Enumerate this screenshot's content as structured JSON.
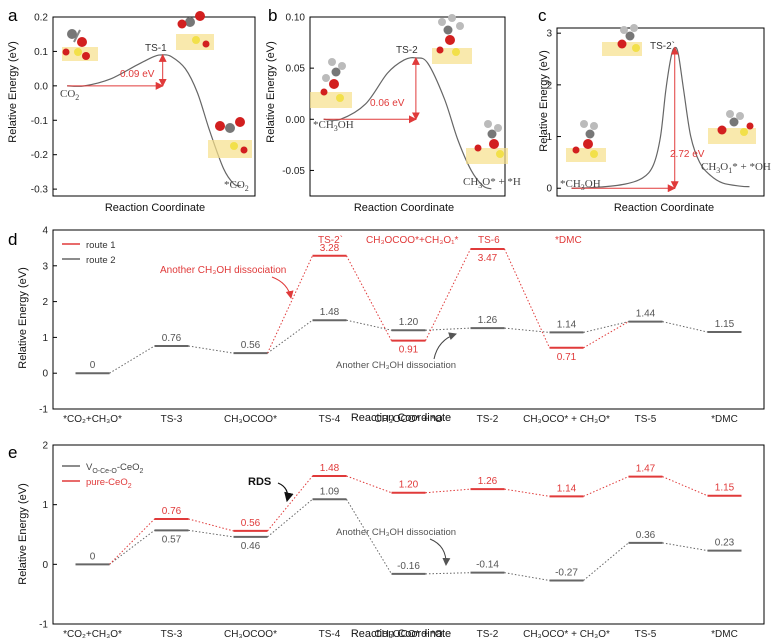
{
  "colors": {
    "red": "#e03a3a",
    "gray": "#666666",
    "axis": "#000000",
    "mol_red": "#d21f1f",
    "mol_gray": "#888888",
    "mol_yellow": "#f2e04a",
    "mol_surface": "#f6e08a"
  },
  "chart_data": [
    {
      "id": "a",
      "type": "line",
      "panel_label": "a",
      "xlabel": "Reaction Coordinate",
      "ylabel": "Relative Energy (eV)",
      "ylim": [
        -0.32,
        0.2
      ],
      "yticks": [
        0.2,
        0.1,
        0.0,
        -0.1,
        -0.2,
        -0.3
      ],
      "ytick_labels": [
        "0.2",
        "0.1",
        "0.0",
        "-0.1",
        "-0.2",
        "-0.3"
      ],
      "xlim": [
        0,
        1
      ],
      "curve": [
        [
          0.0,
          0.0
        ],
        [
          0.1,
          0.0
        ],
        [
          0.25,
          0.02
        ],
        [
          0.4,
          0.06
        ],
        [
          0.5,
          0.085
        ],
        [
          0.55,
          0.09
        ],
        [
          0.6,
          0.085
        ],
        [
          0.68,
          0.05
        ],
        [
          0.75,
          -0.02
        ],
        [
          0.82,
          -0.13
        ],
        [
          0.9,
          -0.24
        ],
        [
          0.96,
          -0.285
        ],
        [
          1.0,
          -0.29
        ]
      ],
      "labels": {
        "start": "CO",
        "start_sub": "2",
        "ts": "TS-1",
        "barrier": "0.09 eV",
        "end": "*CO",
        "end_sub": "2"
      },
      "barrier": {
        "x_from": 0.0,
        "x_to": 0.55,
        "y_low": 0.0,
        "y_high": 0.09
      }
    },
    {
      "id": "b",
      "type": "line",
      "panel_label": "b",
      "xlabel": "Reaction Coordinate",
      "ylabel": "Relative Energy (eV)",
      "ylim": [
        -0.075,
        0.1
      ],
      "yticks": [
        0.1,
        0.05,
        0.0,
        -0.05
      ],
      "ytick_labels": [
        "0.10",
        "0.05",
        "0.00",
        "-0.05"
      ],
      "xlim": [
        0,
        1
      ],
      "curve": [
        [
          0.0,
          0.0
        ],
        [
          0.1,
          0.0
        ],
        [
          0.25,
          0.015
        ],
        [
          0.38,
          0.045
        ],
        [
          0.48,
          0.058
        ],
        [
          0.55,
          0.06
        ],
        [
          0.62,
          0.055
        ],
        [
          0.72,
          0.02
        ],
        [
          0.8,
          -0.02
        ],
        [
          0.88,
          -0.05
        ],
        [
          0.95,
          -0.065
        ],
        [
          1.0,
          -0.068
        ]
      ],
      "labels": {
        "start": "*CH",
        "start_sub": "3",
        "start_tail": "OH",
        "ts": "TS-2",
        "barrier": "0.06 eV",
        "end": "CH",
        "end_sub": "3",
        "end_tail": "O* + *H"
      },
      "barrier": {
        "x_from": 0.0,
        "x_to": 0.55,
        "y_low": 0.0,
        "y_high": 0.06
      }
    },
    {
      "id": "c",
      "type": "line",
      "panel_label": "c",
      "xlabel": "Reaction Coordinate",
      "ylabel": "Relative Energy (eV)",
      "ylim": [
        -0.15,
        3.1
      ],
      "yticks": [
        0,
        1,
        2,
        3
      ],
      "ytick_labels": [
        "0",
        "1",
        "2",
        "3"
      ],
      "xlim": [
        0,
        1
      ],
      "curve": [
        [
          0.0,
          0.0
        ],
        [
          0.15,
          0.02
        ],
        [
          0.3,
          0.08
        ],
        [
          0.4,
          0.2
        ],
        [
          0.46,
          0.45
        ],
        [
          0.5,
          1.0
        ],
        [
          0.53,
          1.9
        ],
        [
          0.56,
          2.55
        ],
        [
          0.58,
          2.72
        ],
        [
          0.6,
          2.6
        ],
        [
          0.63,
          1.9
        ],
        [
          0.67,
          1.0
        ],
        [
          0.72,
          0.5
        ],
        [
          0.78,
          0.25
        ],
        [
          0.85,
          0.1
        ],
        [
          0.95,
          0.04
        ],
        [
          1.0,
          0.03
        ]
      ],
      "labels": {
        "start": "*CH",
        "start_sub": "3",
        "start_tail": "OH",
        "ts": "TS-2`",
        "barrier": "2.72 eV",
        "end": "CH",
        "end_sub": "3",
        "end_mid": "O",
        "end_tail": "* + *OH"
      },
      "barrier": {
        "x_from": 0.0,
        "x_to": 0.58,
        "y_low": 0.0,
        "y_high": 2.72
      }
    },
    {
      "id": "d",
      "type": "line",
      "panel_label": "d",
      "xlabel": "Reaction Coordinate",
      "ylabel": "Relative Energy (eV)",
      "ylim": [
        -1,
        4
      ],
      "yticks": [
        4,
        3,
        2,
        1,
        0,
        -1
      ],
      "ytick_labels": [
        "4",
        "3",
        "2",
        "1",
        "0",
        "-1"
      ],
      "categories": [
        "*CO₂+CH₃O*",
        "TS-3",
        "CH₃OCOO*",
        "TS-4",
        "CH₃OCO* + *O",
        "TS-2",
        "CH₃OCO* + CH₃O*",
        "TS-5",
        "*DMC"
      ],
      "series": [
        {
          "name": "route 1",
          "color": "#e03a3a",
          "points": [
            {
              "x": 3,
              "y": 3.28,
              "label": "3.28",
              "above": true
            },
            {
              "x": 4,
              "y": 0.91,
              "label": "0.91",
              "above": false
            },
            {
              "x": 5,
              "y": 3.47,
              "label": "3.47",
              "above": false
            },
            {
              "x": 6,
              "y": 0.71,
              "label": "0.71",
              "above": false
            }
          ]
        },
        {
          "name": "route 2",
          "color": "#666666",
          "points": [
            {
              "x": 0,
              "y": 0,
              "label": "0",
              "above": true
            },
            {
              "x": 1,
              "y": 0.76,
              "label": "0.76",
              "above": true
            },
            {
              "x": 2,
              "y": 0.56,
              "label": "0.56",
              "above": true
            },
            {
              "x": 3,
              "y": 1.48,
              "label": "1.48",
              "above": true
            },
            {
              "x": 4,
              "y": 1.2,
              "label": "1.20",
              "above": true
            },
            {
              "x": 5,
              "y": 1.26,
              "label": "1.26",
              "above": true
            },
            {
              "x": 6,
              "y": 1.14,
              "label": "1.14",
              "above": true
            },
            {
              "x": 7,
              "y": 1.44,
              "label": "1.44",
              "above": true
            },
            {
              "x": 8,
              "y": 1.15,
              "label": "1.15",
              "above": true
            }
          ]
        }
      ],
      "route1_connect": [
        [
          2,
          0.56
        ],
        [
          3,
          3.28
        ],
        [
          4,
          0.91
        ],
        [
          5,
          3.47
        ],
        [
          6,
          0.71
        ],
        [
          7,
          1.44
        ]
      ],
      "route2_connect": [
        [
          0,
          0
        ],
        [
          1,
          0.76
        ],
        [
          2,
          0.56
        ],
        [
          3,
          1.48
        ],
        [
          4,
          1.2
        ],
        [
          5,
          1.26
        ],
        [
          6,
          1.14
        ],
        [
          7,
          1.44
        ],
        [
          8,
          1.15
        ]
      ],
      "annotations": {
        "ts2p": "TS-2`",
        "ts6": "TS-6",
        "dmc": "*DMC",
        "ch3cooo": "CH₃OCOO*+CH₃O₁*",
        "another_red": "Another CH₃OH dissociation",
        "another_gray": "Another CH₃OH dissociation"
      },
      "legend": [
        {
          "name": "route 1",
          "color": "#e03a3a"
        },
        {
          "name": "route 2",
          "color": "#666666"
        }
      ]
    },
    {
      "id": "e",
      "type": "line",
      "panel_label": "e",
      "xlabel": "Reaction Coordinate",
      "ylabel": "Relative Energy (eV)",
      "ylim": [
        -1,
        2
      ],
      "yticks": [
        2,
        1,
        0,
        -1
      ],
      "ytick_labels": [
        "2",
        "1",
        "0",
        "-1"
      ],
      "categories": [
        "*CO₂+CH₃O*",
        "TS-3",
        "CH₃OCOO*",
        "TS-4",
        "CH₃OCO* + *O",
        "TS-2",
        "CH₃OCO* + CH₃O*",
        "TS-5",
        "*DMC"
      ],
      "series": [
        {
          "name": "Vₒ-Ce-O-CeO₂",
          "legend_main": "V",
          "legend_sub": "O-Ce-O",
          "legend_tail": "-CeO",
          "legend_tail_sub": "2",
          "color": "#666666",
          "points": [
            {
              "x": 0,
              "y": 0,
              "label": "0",
              "above": true
            },
            {
              "x": 1,
              "y": 0.57,
              "label": "0.57",
              "above": false
            },
            {
              "x": 2,
              "y": 0.46,
              "label": "0.46",
              "above": false
            },
            {
              "x": 3,
              "y": 1.09,
              "label": "1.09",
              "above": true
            },
            {
              "x": 4,
              "y": -0.16,
              "label": "-0.16",
              "above": true
            },
            {
              "x": 5,
              "y": -0.14,
              "label": "-0.14",
              "above": true
            },
            {
              "x": 6,
              "y": -0.27,
              "label": "-0.27",
              "above": true
            },
            {
              "x": 7,
              "y": 0.36,
              "label": "0.36",
              "above": true
            },
            {
              "x": 8,
              "y": 0.23,
              "label": "0.23",
              "above": true
            }
          ]
        },
        {
          "name": "pure-CeO₂",
          "legend_main": "pure-CeO",
          "legend_sub": "",
          "legend_tail": "",
          "legend_tail_sub": "2",
          "color": "#e03a3a",
          "points": [
            {
              "x": 1,
              "y": 0.76,
              "label": "0.76",
              "above": true
            },
            {
              "x": 2,
              "y": 0.56,
              "label": "0.56",
              "above": true
            },
            {
              "x": 3,
              "y": 1.48,
              "label": "1.48",
              "above": true
            },
            {
              "x": 4,
              "y": 1.2,
              "label": "1.20",
              "above": true
            },
            {
              "x": 5,
              "y": 1.26,
              "label": "1.26",
              "above": true
            },
            {
              "x": 6,
              "y": 1.14,
              "label": "1.14",
              "above": true
            },
            {
              "x": 7,
              "y": 1.47,
              "label": "1.47",
              "above": true
            },
            {
              "x": 8,
              "y": 1.15,
              "label": "1.15",
              "above": true
            }
          ]
        }
      ],
      "red_connect": [
        [
          0,
          0
        ],
        [
          1,
          0.76
        ],
        [
          2,
          0.56
        ],
        [
          3,
          1.48
        ],
        [
          4,
          1.2
        ],
        [
          5,
          1.26
        ],
        [
          6,
          1.14
        ],
        [
          7,
          1.47
        ],
        [
          8,
          1.15
        ]
      ],
      "gray_connect": [
        [
          0,
          0
        ],
        [
          1,
          0.57
        ],
        [
          2,
          0.46
        ],
        [
          3,
          1.09
        ],
        [
          4,
          -0.16
        ],
        [
          5,
          -0.14
        ],
        [
          6,
          -0.27
        ],
        [
          7,
          0.36
        ],
        [
          8,
          0.23
        ]
      ],
      "annotations": {
        "rds": "RDS",
        "another": "Another CH₃OH dissociation"
      }
    }
  ]
}
